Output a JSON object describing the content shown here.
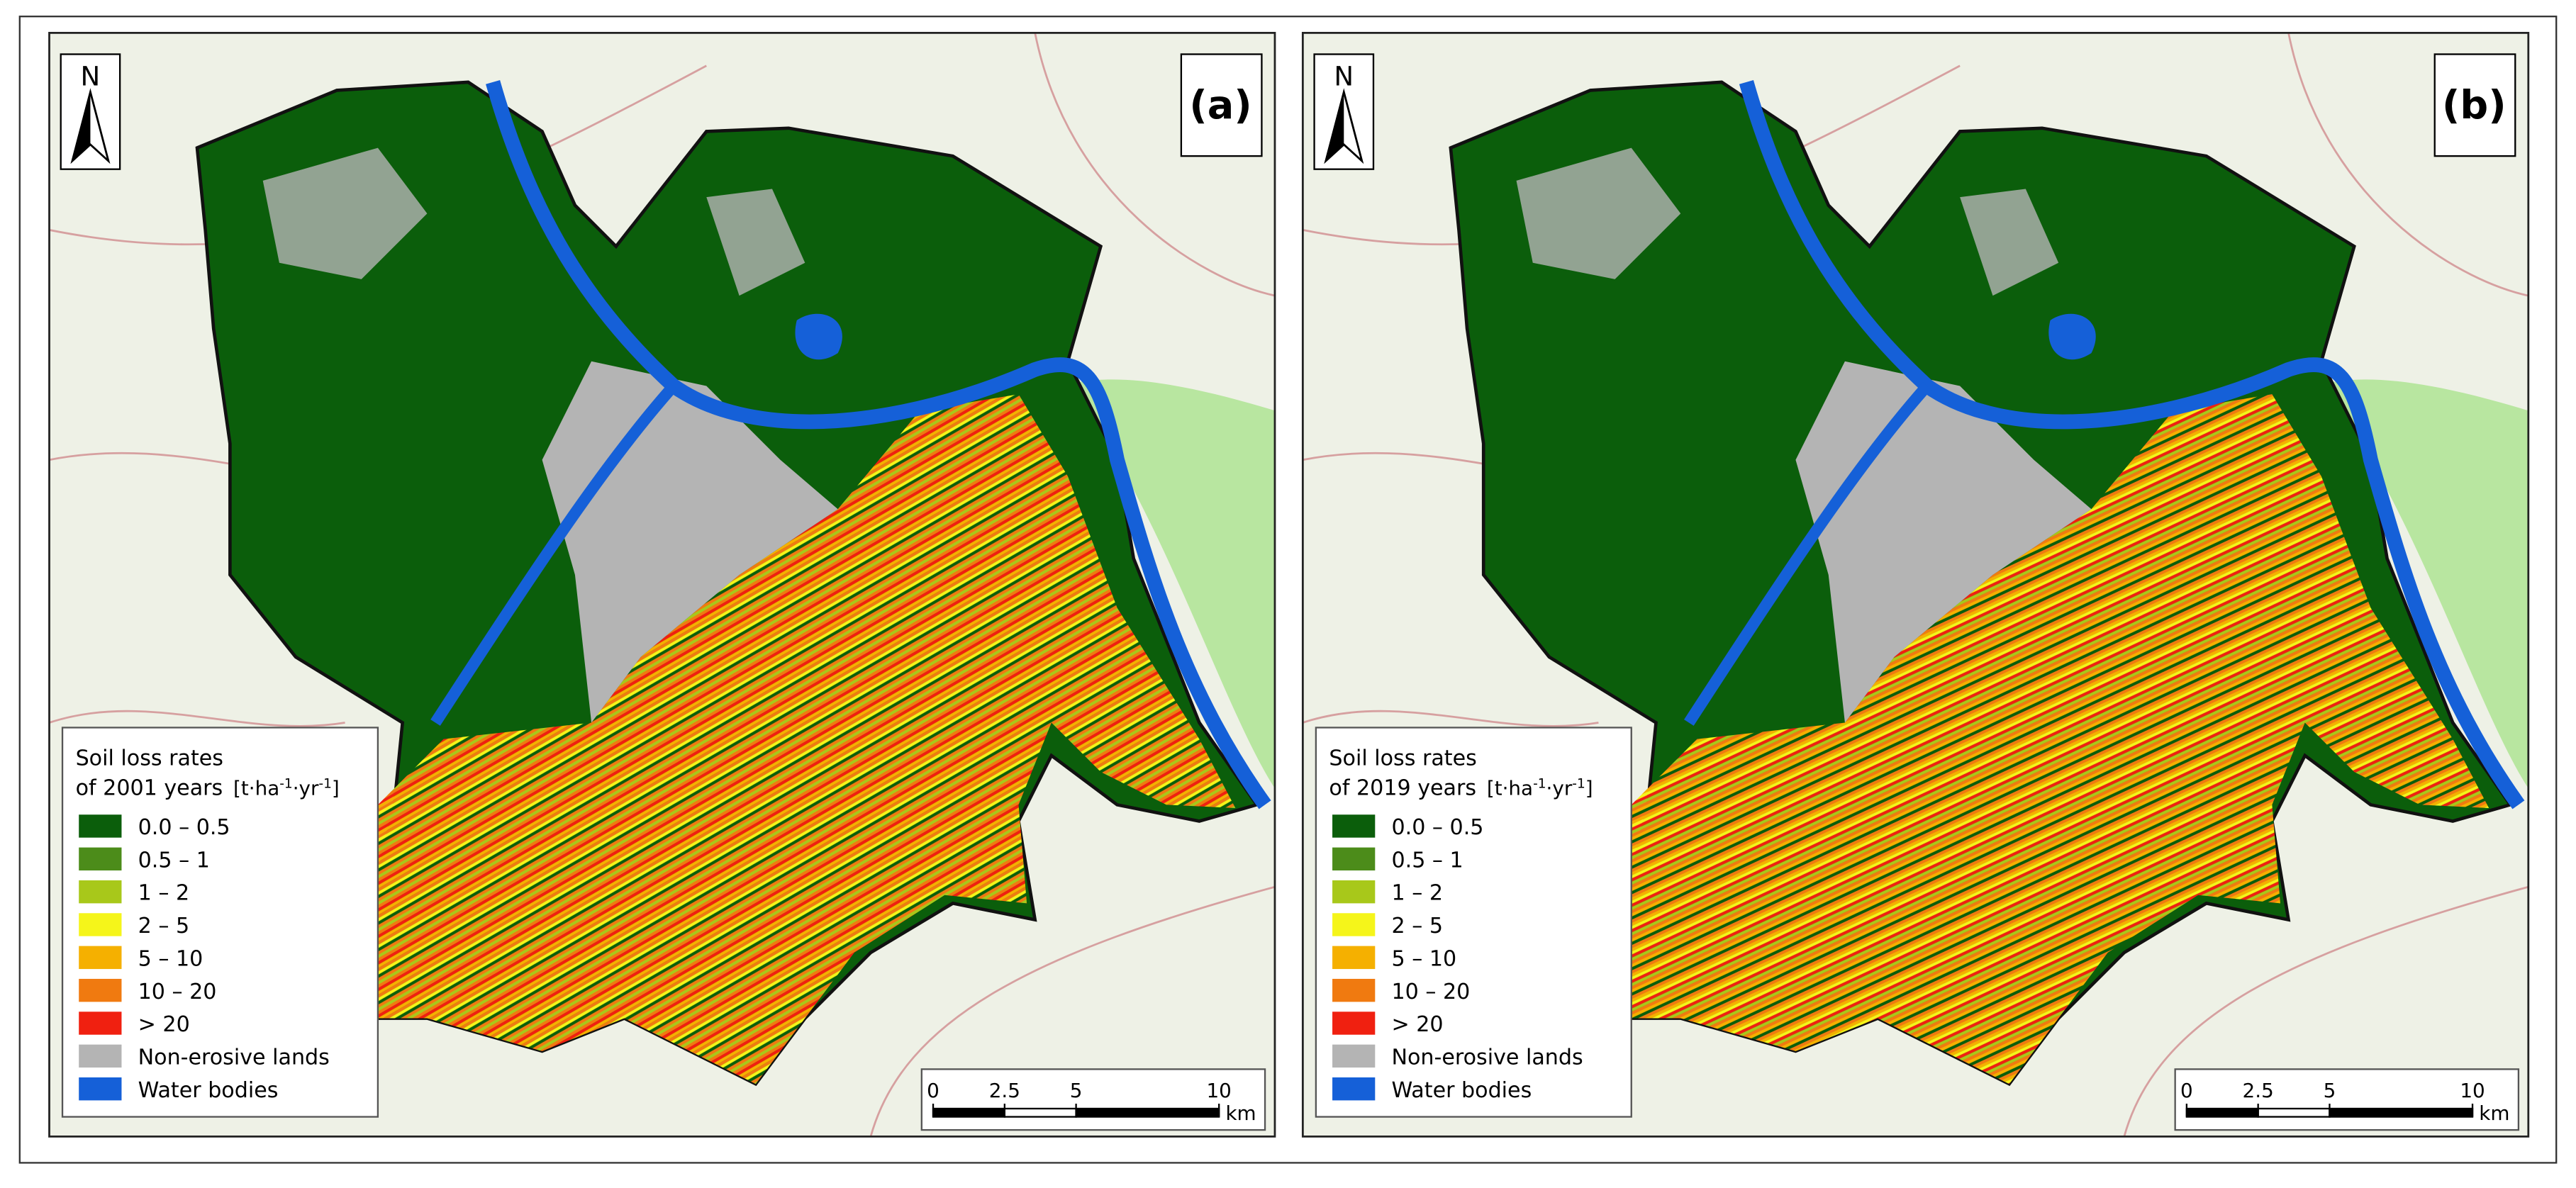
{
  "panels": [
    {
      "label": "(a)",
      "north": "N",
      "legend": {
        "title": "Soil loss rates",
        "subtitle": "of 2001 years",
        "unit": [
          "[t·ha",
          "-1",
          "·yr",
          "-1",
          "]"
        ],
        "items": [
          {
            "label": "0.0 – 0.5",
            "color": "#0b5e0b"
          },
          {
            "label": "0.5 – 1",
            "color": "#4c8c1a"
          },
          {
            "label": "1 – 2",
            "color": "#a8c81a"
          },
          {
            "label": "2 – 5",
            "color": "#f5f51a"
          },
          {
            "label": "5 – 10",
            "color": "#f5b000"
          },
          {
            "label": "10 – 20",
            "color": "#f07a10"
          },
          {
            "label": "> 20",
            "color": "#f02010"
          },
          {
            "label": "Non-erosive lands",
            "color": "#b4b4b4"
          },
          {
            "label": "Water bodies",
            "color": "#1560d8"
          }
        ]
      },
      "scale": {
        "ticks": [
          0,
          2.5,
          5,
          10
        ],
        "unit": "km"
      }
    },
    {
      "label": "(b)",
      "north": "N",
      "legend": {
        "title": "Soil loss rates",
        "subtitle": "of 2019 years",
        "unit": [
          "[t·ha",
          "-1",
          "·yr",
          "-1",
          "]"
        ],
        "items": [
          {
            "label": "0.0 – 0.5",
            "color": "#0b5e0b"
          },
          {
            "label": "0.5 – 1",
            "color": "#4c8c1a"
          },
          {
            "label": "1 – 2",
            "color": "#a8c81a"
          },
          {
            "label": "2 – 5",
            "color": "#f5f51a"
          },
          {
            "label": "5 – 10",
            "color": "#f5b000"
          },
          {
            "label": "10 – 20",
            "color": "#f07a10"
          },
          {
            "label": "> 20",
            "color": "#f02010"
          },
          {
            "label": "Non-erosive lands",
            "color": "#b4b4b4"
          },
          {
            "label": "Water bodies",
            "color": "#1560d8"
          }
        ]
      },
      "scale": {
        "ticks": [
          0,
          2.5,
          5,
          10
        ],
        "unit": "km"
      }
    }
  ]
}
